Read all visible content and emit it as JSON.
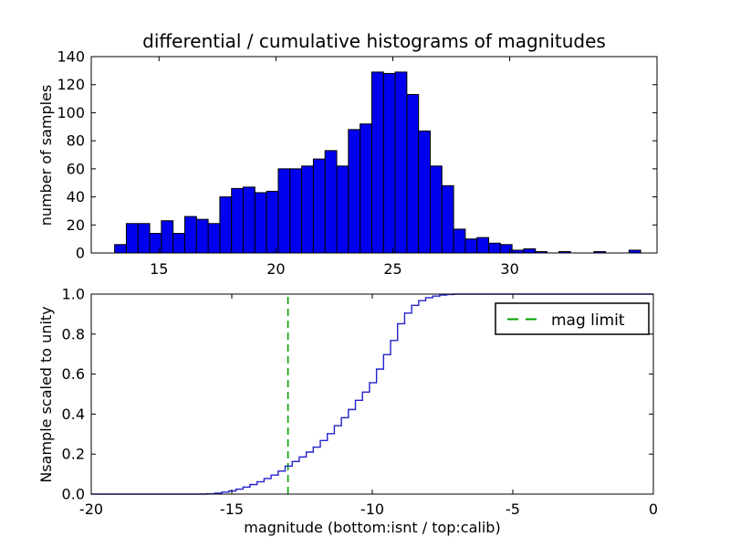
{
  "figure": {
    "title": "differential / cumulative histograms of magnitudes",
    "background": "#ffffff"
  },
  "chart_data": [
    {
      "type": "bar",
      "role": "differential-histogram-top-panel",
      "title": "differential / cumulative histograms of magnitudes",
      "xlabel": "",
      "ylabel": "number of samples",
      "xlim": [
        12.1,
        36.3
      ],
      "ylim": [
        0,
        140
      ],
      "xticks": [
        15,
        20,
        25,
        30
      ],
      "xtick_labels": [
        "15",
        "20",
        "25",
        "30"
      ],
      "yticks": [
        0,
        20,
        40,
        60,
        80,
        100,
        120,
        140
      ],
      "ytick_labels": [
        "0",
        "20",
        "40",
        "60",
        "80",
        "100",
        "120",
        "140"
      ],
      "grid": false,
      "bins": {
        "start": 13.1,
        "width": 0.5
      },
      "values": [
        6,
        21,
        21,
        14,
        23,
        14,
        26,
        24,
        21,
        40,
        46,
        47,
        43,
        44,
        60,
        60,
        62,
        67,
        73,
        62,
        88,
        92,
        129,
        128,
        129,
        113,
        87,
        62,
        48,
        17,
        10,
        11,
        7,
        6,
        2,
        3,
        1,
        0,
        1,
        0,
        0,
        1,
        0,
        0,
        2
      ],
      "colors": {
        "fill": "#0000ee",
        "edge": "#000000"
      }
    },
    {
      "type": "line",
      "role": "cumulative-histogram-bottom-panel",
      "xlabel": "magnitude (bottom:isnt / top:calib)",
      "ylabel": "Nsample scaled to unity",
      "xlim": [
        -20,
        0
      ],
      "ylim": [
        0,
        1
      ],
      "xticks": [
        -20,
        -15,
        -10,
        -5,
        0
      ],
      "xtick_labels": [
        "-20",
        "-15",
        "-10",
        "-5",
        "0"
      ],
      "yticks": [
        0,
        0.2,
        0.4,
        0.6,
        0.8,
        1.0
      ],
      "ytick_labels": [
        "0.0",
        "0.2",
        "0.4",
        "0.6",
        "0.8",
        "1.0"
      ],
      "grid": false,
      "line_color": "#2222cc",
      "steps": [
        [
          -20,
          0
        ],
        [
          -15.9,
          0.002
        ],
        [
          -15.6,
          0.005
        ],
        [
          -15.35,
          0.01
        ],
        [
          -15.1,
          0.016
        ],
        [
          -14.85,
          0.025
        ],
        [
          -14.6,
          0.035
        ],
        [
          -14.35,
          0.048
        ],
        [
          -14.1,
          0.062
        ],
        [
          -13.85,
          0.078
        ],
        [
          -13.6,
          0.095
        ],
        [
          -13.35,
          0.115
        ],
        [
          -13.1,
          0.14
        ],
        [
          -12.85,
          0.163
        ],
        [
          -12.6,
          0.186
        ],
        [
          -12.35,
          0.21
        ],
        [
          -12.1,
          0.235
        ],
        [
          -11.85,
          0.268
        ],
        [
          -11.6,
          0.302
        ],
        [
          -11.35,
          0.342
        ],
        [
          -11.1,
          0.382
        ],
        [
          -10.85,
          0.423
        ],
        [
          -10.6,
          0.469
        ],
        [
          -10.35,
          0.51
        ],
        [
          -10.1,
          0.557
        ],
        [
          -9.85,
          0.625
        ],
        [
          -9.6,
          0.697
        ],
        [
          -9.35,
          0.768
        ],
        [
          -9.1,
          0.852
        ],
        [
          -8.85,
          0.905
        ],
        [
          -8.6,
          0.944
        ],
        [
          -8.35,
          0.967
        ],
        [
          -8.1,
          0.982
        ],
        [
          -7.85,
          0.99
        ],
        [
          -7.6,
          0.995
        ],
        [
          -7.35,
          0.998
        ],
        [
          -7.1,
          1.0
        ]
      ],
      "vline": {
        "x": -13,
        "style": "dashed",
        "color": "#00a000",
        "label": "mag limit"
      },
      "legend": {
        "position": "upper right",
        "entries": [
          "mag limit"
        ]
      }
    }
  ]
}
